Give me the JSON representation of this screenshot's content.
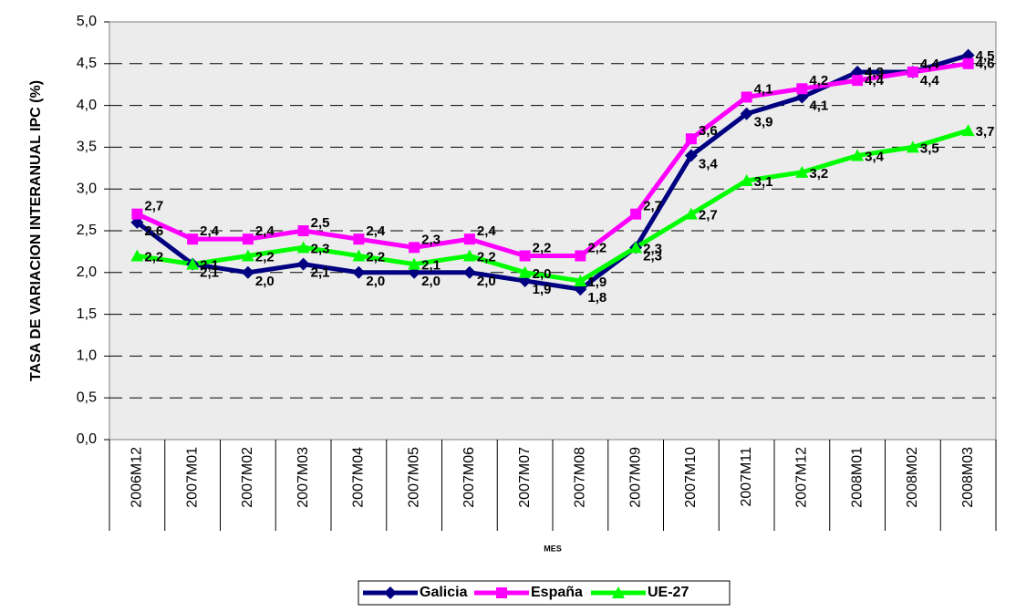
{
  "chart_data": {
    "type": "line",
    "y_label": "TASA DE VARIACION INTERANUAL IPC (%)",
    "x_label": "MES",
    "categories": [
      "2006M12",
      "2007M01",
      "2007M02",
      "2007M03",
      "2007M04",
      "2007M05",
      "2007M06",
      "2007M07",
      "2007M08",
      "2007M09",
      "2007M10",
      "2007M11",
      "2007M12",
      "2008M01",
      "2008M02",
      "2008M03"
    ],
    "series": [
      {
        "name": "Galicia",
        "color": "#000080",
        "marker": "diamond",
        "values": [
          2.6,
          2.1,
          2.0,
          2.1,
          2.0,
          2.0,
          2.0,
          1.9,
          1.8,
          2.3,
          3.4,
          3.9,
          4.1,
          4.4,
          4.4,
          4.6
        ],
        "value_labels": [
          "2,6",
          "2,1",
          "2,0",
          "2,1",
          "2,0",
          "2,0",
          "2,0",
          "1,9",
          "1,8",
          "2,3",
          "3,4",
          "3,9",
          "4,1",
          "4,4",
          "4,4",
          "4,6"
        ]
      },
      {
        "name": "España",
        "color": "#ff00ff",
        "marker": "square",
        "values": [
          2.7,
          2.4,
          2.4,
          2.5,
          2.4,
          2.3,
          2.4,
          2.2,
          2.2,
          2.7,
          3.6,
          4.1,
          4.2,
          4.3,
          4.4,
          4.5
        ],
        "value_labels": [
          "2,7",
          "2,4",
          "2,4",
          "2,5",
          "2,4",
          "2,3",
          "2,4",
          "2,2",
          "2,2",
          "2,7",
          "3,6",
          "4,1",
          "4,2",
          "4,3",
          "4,4",
          "4,5"
        ]
      },
      {
        "name": "UE-27",
        "color": "#00ff00",
        "marker": "triangle",
        "values": [
          2.2,
          2.1,
          2.2,
          2.3,
          2.2,
          2.1,
          2.2,
          2.0,
          1.9,
          2.3,
          2.7,
          3.1,
          3.2,
          3.4,
          3.5,
          3.7
        ],
        "value_labels": [
          "2,2",
          "2,1",
          "2,2",
          "2,3",
          "2,2",
          "2,1",
          "2,2",
          "2,0",
          "1,9",
          "2,3",
          "2,7",
          "3,1",
          "3,2",
          "3,4",
          "3,5",
          "3,7"
        ]
      }
    ],
    "ylim": [
      0,
      5
    ],
    "yticks": [
      {
        "value": 0,
        "label": "0,0"
      },
      {
        "value": 0.5,
        "label": "0,5"
      },
      {
        "value": 1,
        "label": "1,0"
      },
      {
        "value": 1.5,
        "label": "1,5"
      },
      {
        "value": 2,
        "label": "2,0"
      },
      {
        "value": 2.5,
        "label": "2,5"
      },
      {
        "value": 3,
        "label": "3,0"
      },
      {
        "value": 3.5,
        "label": "3,5"
      },
      {
        "value": 4,
        "label": "4,0"
      },
      {
        "value": 4.5,
        "label": "4,5"
      },
      {
        "value": 5,
        "label": "5,0"
      }
    ],
    "grid": true,
    "legend": "bottom"
  }
}
